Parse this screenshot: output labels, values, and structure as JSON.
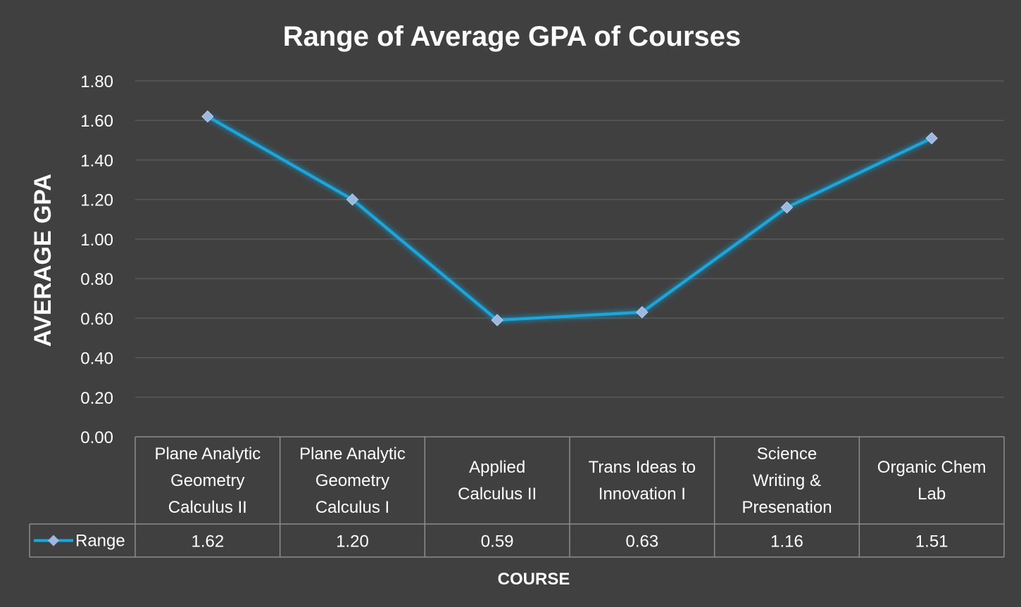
{
  "chart_data": {
    "type": "line",
    "title": "Range of Average GPA of Courses",
    "xlabel": "COURSE",
    "ylabel": "AVERAGE GPA",
    "ylim": [
      0,
      1.8
    ],
    "yticks": [
      "0.00",
      "0.20",
      "0.40",
      "0.60",
      "0.80",
      "1.00",
      "1.20",
      "1.40",
      "1.60",
      "1.80"
    ],
    "categories": [
      [
        "Plane Analytic",
        "Geometry",
        "Calculus II"
      ],
      [
        "Plane Analytic",
        "Geometry",
        "Calculus I"
      ],
      [
        "Applied",
        "Calculus II"
      ],
      [
        "Trans Ideas to",
        "Innovation I"
      ],
      [
        "Science",
        "Writing &",
        "Presenation"
      ],
      [
        "Organic Chem",
        "Lab"
      ]
    ],
    "series": [
      {
        "name": "Range",
        "values": [
          1.62,
          1.2,
          0.59,
          0.63,
          1.16,
          1.51
        ],
        "value_labels": [
          "1.62",
          "1.20",
          "0.59",
          "0.63",
          "1.16",
          "1.51"
        ],
        "color": "#16a8e0",
        "marker_color": "#9db8de",
        "marker": "diamond"
      }
    ],
    "grid": true,
    "legend": "data-table",
    "background": "#404040"
  }
}
